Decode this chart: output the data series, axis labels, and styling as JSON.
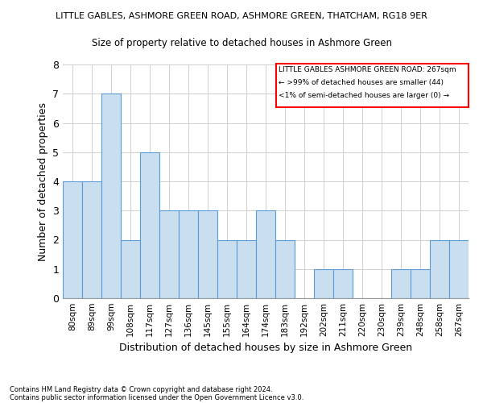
{
  "title": "LITTLE GABLES, ASHMORE GREEN ROAD, ASHMORE GREEN, THATCHAM, RG18 9ER",
  "subtitle": "Size of property relative to detached houses in Ashmore Green",
  "xlabel": "Distribution of detached houses by size in Ashmore Green",
  "ylabel": "Number of detached properties",
  "categories": [
    "80sqm",
    "89sqm",
    "99sqm",
    "108sqm",
    "117sqm",
    "127sqm",
    "136sqm",
    "145sqm",
    "155sqm",
    "164sqm",
    "174sqm",
    "183sqm",
    "192sqm",
    "202sqm",
    "211sqm",
    "220sqm",
    "230sqm",
    "239sqm",
    "248sqm",
    "258sqm",
    "267sqm"
  ],
  "values": [
    4,
    4,
    7,
    2,
    5,
    3,
    3,
    3,
    2,
    2,
    3,
    2,
    0,
    1,
    1,
    0,
    0,
    1,
    1,
    2,
    2
  ],
  "bar_color": "#c9dff0",
  "bar_edge_color": "#5b9bd5",
  "highlight_box_color": "#ff0000",
  "annotation_lines": [
    "LITTLE GABLES ASHMORE GREEN ROAD: 267sqm",
    "← >99% of detached houses are smaller (44)",
    "<1% of semi-detached houses are larger (0) →"
  ],
  "grid_color": "#d0d0d0",
  "ylim": [
    0,
    8
  ],
  "yticks": [
    0,
    1,
    2,
    3,
    4,
    5,
    6,
    7,
    8
  ],
  "footer_lines": [
    "Contains HM Land Registry data © Crown copyright and database right 2024.",
    "Contains public sector information licensed under the Open Government Licence v3.0."
  ],
  "background_color": "#ffffff",
  "fig_width": 6.0,
  "fig_height": 5.0,
  "dpi": 100
}
